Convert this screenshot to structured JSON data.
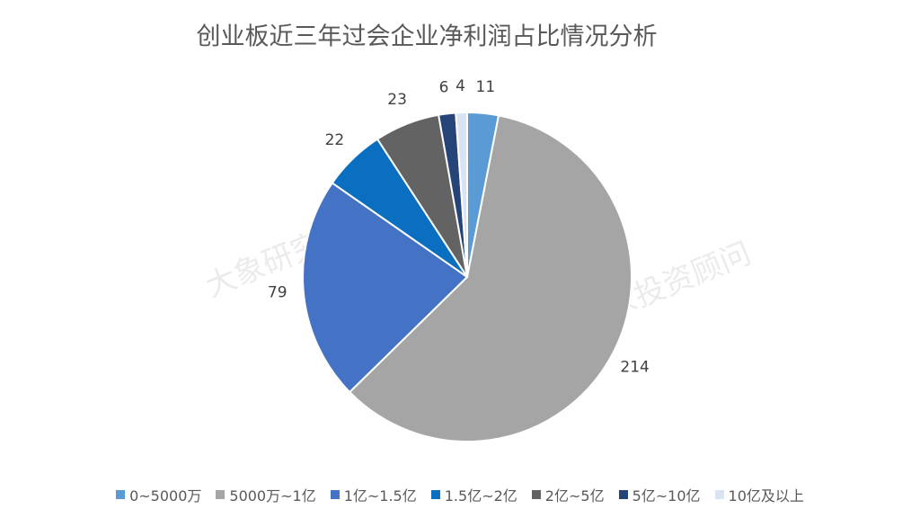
{
  "chart_data": {
    "type": "pie",
    "title": "创业板近三年过会企业净利润占比情况分析",
    "categories": [
      "0~5000万",
      "5000万~1亿",
      "1亿~1.5亿",
      "1.5亿~2亿",
      "2亿~5亿",
      "5亿~10亿",
      "10亿及以上"
    ],
    "values": [
      11,
      214,
      79,
      22,
      23,
      6,
      4
    ],
    "colors": [
      "#5b9bd5",
      "#a5a5a5",
      "#4472c4",
      "#0a6fc0",
      "#636363",
      "#264478",
      "#dae3f3"
    ],
    "legend": "bottom",
    "watermarks": [
      "大象研究院",
      "大象投资顾问"
    ]
  }
}
